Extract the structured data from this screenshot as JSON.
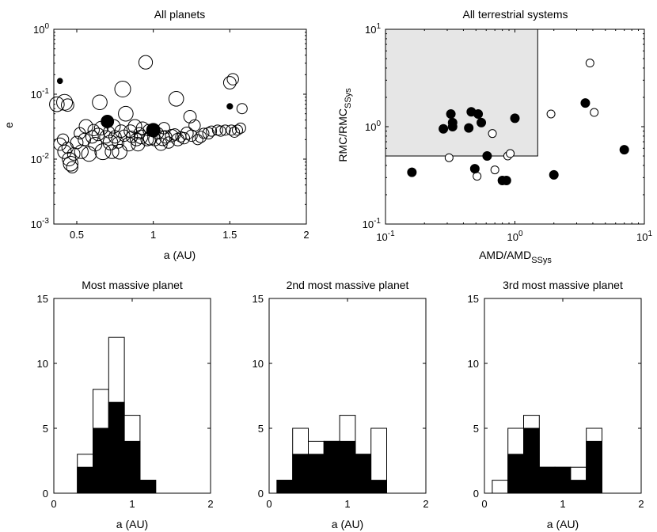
{
  "chart_data": [
    {
      "type": "scatter",
      "title": "All planets",
      "xlabel": "a (AU)",
      "ylabel": "e",
      "xlim": [
        0.35,
        2.0
      ],
      "yscale": "log",
      "ylim": [
        0.001,
        1
      ],
      "xticks": [
        {
          "value": 0.5,
          "label": "0.5"
        },
        {
          "value": 1.0,
          "label": "1"
        },
        {
          "value": 1.5,
          "label": "1.5"
        },
        {
          "value": 2.0,
          "label": "2"
        }
      ],
      "yticks": [
        {
          "value": 0.001,
          "base": "10",
          "exp": "-3"
        },
        {
          "value": 0.01,
          "base": "10",
          "exp": "-2"
        },
        {
          "value": 0.1,
          "base": "10",
          "exp": "-1"
        },
        {
          "value": 1,
          "base": "10",
          "exp": "0"
        }
      ],
      "filled_points": [
        {
          "x": 0.39,
          "y": 0.16,
          "mass": 0.06
        },
        {
          "x": 0.7,
          "y": 0.038,
          "mass": 0.9
        },
        {
          "x": 1.0,
          "y": 0.028,
          "mass": 1.0
        },
        {
          "x": 1.5,
          "y": 0.065,
          "mass": 0.11
        }
      ],
      "open_points": [
        {
          "x": 0.37,
          "y": 0.07,
          "mass": 0.9
        },
        {
          "x": 0.42,
          "y": 0.075,
          "mass": 1.0
        },
        {
          "x": 0.44,
          "y": 0.068,
          "mass": 0.7
        },
        {
          "x": 0.39,
          "y": 0.017,
          "mass": 0.7
        },
        {
          "x": 0.41,
          "y": 0.02,
          "mass": 0.6
        },
        {
          "x": 0.42,
          "y": 0.013,
          "mass": 0.8
        },
        {
          "x": 0.44,
          "y": 0.015,
          "mass": 0.6
        },
        {
          "x": 0.45,
          "y": 0.01,
          "mass": 0.8
        },
        {
          "x": 0.46,
          "y": 0.0085,
          "mass": 0.9
        },
        {
          "x": 0.47,
          "y": 0.0075,
          "mass": 0.6
        },
        {
          "x": 0.48,
          "y": 0.012,
          "mass": 0.7
        },
        {
          "x": 0.5,
          "y": 0.018,
          "mass": 0.7
        },
        {
          "x": 0.52,
          "y": 0.025,
          "mass": 0.6
        },
        {
          "x": 0.53,
          "y": 0.013,
          "mass": 0.8
        },
        {
          "x": 0.55,
          "y": 0.02,
          "mass": 0.7
        },
        {
          "x": 0.56,
          "y": 0.032,
          "mass": 0.8
        },
        {
          "x": 0.58,
          "y": 0.012,
          "mass": 0.9
        },
        {
          "x": 0.6,
          "y": 0.022,
          "mass": 0.7
        },
        {
          "x": 0.61,
          "y": 0.028,
          "mass": 0.6
        },
        {
          "x": 0.62,
          "y": 0.017,
          "mass": 0.8
        },
        {
          "x": 0.64,
          "y": 0.024,
          "mass": 0.7
        },
        {
          "x": 0.65,
          "y": 0.075,
          "mass": 0.9
        },
        {
          "x": 0.66,
          "y": 0.03,
          "mass": 0.8
        },
        {
          "x": 0.67,
          "y": 0.013,
          "mass": 1.0
        },
        {
          "x": 0.69,
          "y": 0.022,
          "mass": 0.7
        },
        {
          "x": 0.71,
          "y": 0.026,
          "mass": 0.6
        },
        {
          "x": 0.72,
          "y": 0.018,
          "mass": 0.9
        },
        {
          "x": 0.73,
          "y": 0.013,
          "mass": 0.8
        },
        {
          "x": 0.74,
          "y": 0.032,
          "mass": 0.8
        },
        {
          "x": 0.75,
          "y": 0.022,
          "mass": 0.7
        },
        {
          "x": 0.77,
          "y": 0.018,
          "mass": 0.6
        },
        {
          "x": 0.78,
          "y": 0.013,
          "mass": 0.9
        },
        {
          "x": 0.79,
          "y": 0.027,
          "mass": 0.7
        },
        {
          "x": 0.8,
          "y": 0.12,
          "mass": 1.0
        },
        {
          "x": 0.81,
          "y": 0.023,
          "mass": 0.6
        },
        {
          "x": 0.82,
          "y": 0.05,
          "mass": 0.9
        },
        {
          "x": 0.84,
          "y": 0.017,
          "mass": 0.8
        },
        {
          "x": 0.85,
          "y": 0.027,
          "mass": 0.7
        },
        {
          "x": 0.86,
          "y": 0.022,
          "mass": 0.6
        },
        {
          "x": 0.88,
          "y": 0.032,
          "mass": 0.8
        },
        {
          "x": 0.89,
          "y": 0.02,
          "mass": 0.7
        },
        {
          "x": 0.9,
          "y": 0.017,
          "mass": 0.8
        },
        {
          "x": 0.91,
          "y": 0.025,
          "mass": 0.6
        },
        {
          "x": 0.92,
          "y": 0.022,
          "mass": 0.8
        },
        {
          "x": 0.93,
          "y": 0.03,
          "mass": 0.7
        },
        {
          "x": 0.95,
          "y": 0.31,
          "mass": 0.8
        },
        {
          "x": 0.96,
          "y": 0.02,
          "mass": 0.7
        },
        {
          "x": 0.97,
          "y": 0.028,
          "mass": 0.6
        },
        {
          "x": 0.98,
          "y": 0.021,
          "mass": 0.8
        },
        {
          "x": 1.01,
          "y": 0.02,
          "mass": 0.7
        },
        {
          "x": 1.03,
          "y": 0.025,
          "mass": 0.6
        },
        {
          "x": 1.05,
          "y": 0.017,
          "mass": 0.7
        },
        {
          "x": 1.06,
          "y": 0.021,
          "mass": 0.9
        },
        {
          "x": 1.07,
          "y": 0.03,
          "mass": 0.6
        },
        {
          "x": 1.08,
          "y": 0.022,
          "mass": 0.7
        },
        {
          "x": 1.1,
          "y": 0.018,
          "mass": 0.6
        },
        {
          "x": 1.12,
          "y": 0.023,
          "mass": 0.7
        },
        {
          "x": 1.14,
          "y": 0.024,
          "mass": 0.6
        },
        {
          "x": 1.15,
          "y": 0.085,
          "mass": 0.9
        },
        {
          "x": 1.16,
          "y": 0.02,
          "mass": 0.7
        },
        {
          "x": 1.18,
          "y": 0.022,
          "mass": 0.5
        },
        {
          "x": 1.2,
          "y": 0.021,
          "mass": 0.6
        },
        {
          "x": 1.22,
          "y": 0.025,
          "mass": 0.7
        },
        {
          "x": 1.24,
          "y": 0.045,
          "mass": 0.7
        },
        {
          "x": 1.25,
          "y": 0.023,
          "mass": 0.6
        },
        {
          "x": 1.27,
          "y": 0.033,
          "mass": 0.6
        },
        {
          "x": 1.29,
          "y": 0.02,
          "mass": 0.5
        },
        {
          "x": 1.31,
          "y": 0.022,
          "mass": 0.6
        },
        {
          "x": 1.33,
          "y": 0.025,
          "mass": 0.5
        },
        {
          "x": 1.36,
          "y": 0.025,
          "mass": 0.6
        },
        {
          "x": 1.38,
          "y": 0.027,
          "mass": 0.5
        },
        {
          "x": 1.42,
          "y": 0.028,
          "mass": 0.5
        },
        {
          "x": 1.44,
          "y": 0.027,
          "mass": 0.5
        },
        {
          "x": 1.47,
          "y": 0.028,
          "mass": 0.5
        },
        {
          "x": 1.5,
          "y": 0.15,
          "mass": 0.7
        },
        {
          "x": 1.52,
          "y": 0.17,
          "mass": 0.6
        },
        {
          "x": 1.51,
          "y": 0.028,
          "mass": 0.5
        },
        {
          "x": 1.53,
          "y": 0.026,
          "mass": 0.5
        },
        {
          "x": 1.55,
          "y": 0.028,
          "mass": 0.5
        },
        {
          "x": 1.57,
          "y": 0.03,
          "mass": 0.5
        },
        {
          "x": 1.58,
          "y": 0.06,
          "mass": 0.5
        }
      ]
    },
    {
      "type": "scatter",
      "title": "All terrestrial systems",
      "xlabel": {
        "main": "AMD/AMD",
        "sub": "SSys"
      },
      "ylabel": {
        "main": "RMC/RMC",
        "sub": "SSys"
      },
      "xscale": "log",
      "yscale": "log",
      "xlim": [
        0.1,
        10
      ],
      "ylim": [
        0.1,
        10
      ],
      "xticks": [
        {
          "value": 0.1,
          "base": "10",
          "exp": "-1"
        },
        {
          "value": 1,
          "base": "10",
          "exp": "0"
        },
        {
          "value": 10,
          "base": "10",
          "exp": "1"
        }
      ],
      "yticks": [
        {
          "value": 0.1,
          "base": "10",
          "exp": "-1"
        },
        {
          "value": 1,
          "base": "10",
          "exp": "0"
        },
        {
          "value": 10,
          "base": "10",
          "exp": "1"
        }
      ],
      "shaded_region": {
        "x": [
          0.1,
          1.5
        ],
        "y": [
          0.5,
          10
        ],
        "color": "#e6e6e6"
      },
      "filled_points": [
        {
          "x": 0.16,
          "y": 0.34
        },
        {
          "x": 0.28,
          "y": 0.95
        },
        {
          "x": 0.32,
          "y": 1.35
        },
        {
          "x": 0.33,
          "y": 1.1
        },
        {
          "x": 0.33,
          "y": 1.0
        },
        {
          "x": 0.44,
          "y": 0.97
        },
        {
          "x": 0.46,
          "y": 1.42
        },
        {
          "x": 0.49,
          "y": 0.37
        },
        {
          "x": 0.52,
          "y": 1.35
        },
        {
          "x": 0.55,
          "y": 1.1
        },
        {
          "x": 0.61,
          "y": 0.5
        },
        {
          "x": 0.8,
          "y": 0.28
        },
        {
          "x": 0.86,
          "y": 0.28
        },
        {
          "x": 1.0,
          "y": 1.22
        },
        {
          "x": 2.0,
          "y": 0.32
        },
        {
          "x": 3.5,
          "y": 1.75
        },
        {
          "x": 7.0,
          "y": 0.58
        }
      ],
      "open_points": [
        {
          "x": 0.31,
          "y": 0.48
        },
        {
          "x": 0.51,
          "y": 0.31
        },
        {
          "x": 0.67,
          "y": 0.85
        },
        {
          "x": 0.7,
          "y": 0.36
        },
        {
          "x": 0.88,
          "y": 0.5
        },
        {
          "x": 0.92,
          "y": 0.53
        },
        {
          "x": 1.9,
          "y": 1.35
        },
        {
          "x": 3.8,
          "y": 4.5
        },
        {
          "x": 4.1,
          "y": 1.4
        }
      ]
    },
    {
      "type": "bar",
      "stacked": true,
      "title": "Most massive planet",
      "xlabel": "a (AU)",
      "xlim": [
        0,
        2
      ],
      "ylim": [
        0,
        15
      ],
      "bin_width": 0.2,
      "xticks": [
        "0",
        "1",
        "2"
      ],
      "yticks": [
        "0",
        "5",
        "10",
        "15"
      ],
      "bins": [
        {
          "center": 0.4,
          "filled": 2,
          "total": 3
        },
        {
          "center": 0.6,
          "filled": 5,
          "total": 8
        },
        {
          "center": 0.8,
          "filled": 7,
          "total": 12
        },
        {
          "center": 1.0,
          "filled": 4,
          "total": 6
        },
        {
          "center": 1.2,
          "filled": 1,
          "total": 1
        }
      ]
    },
    {
      "type": "bar",
      "stacked": true,
      "title": "2nd most massive planet",
      "xlabel": "a (AU)",
      "xlim": [
        0,
        2
      ],
      "ylim": [
        0,
        15
      ],
      "bin_width": 0.2,
      "xticks": [
        "0",
        "1",
        "2"
      ],
      "yticks": [
        "0",
        "5",
        "10",
        "15"
      ],
      "bins": [
        {
          "center": 0.2,
          "filled": 1,
          "total": 1
        },
        {
          "center": 0.4,
          "filled": 3,
          "total": 5
        },
        {
          "center": 0.6,
          "filled": 3,
          "total": 4
        },
        {
          "center": 0.8,
          "filled": 4,
          "total": 4
        },
        {
          "center": 1.0,
          "filled": 4,
          "total": 6
        },
        {
          "center": 1.2,
          "filled": 3,
          "total": 3
        },
        {
          "center": 1.4,
          "filled": 1,
          "total": 5
        }
      ]
    },
    {
      "type": "bar",
      "stacked": true,
      "title": "3rd most massive planet",
      "xlabel": "a (AU)",
      "xlim": [
        0,
        2
      ],
      "ylim": [
        0,
        15
      ],
      "bin_width": 0.2,
      "xticks": [
        "0",
        "1",
        "2"
      ],
      "yticks": [
        "0",
        "5",
        "10",
        "15"
      ],
      "bins": [
        {
          "center": 0.2,
          "filled": 0,
          "total": 1
        },
        {
          "center": 0.4,
          "filled": 3,
          "total": 5
        },
        {
          "center": 0.6,
          "filled": 5,
          "total": 6
        },
        {
          "center": 0.8,
          "filled": 2,
          "total": 2
        },
        {
          "center": 1.0,
          "filled": 2,
          "total": 2
        },
        {
          "center": 1.2,
          "filled": 1,
          "total": 2
        },
        {
          "center": 1.4,
          "filled": 4,
          "total": 5
        }
      ]
    }
  ]
}
